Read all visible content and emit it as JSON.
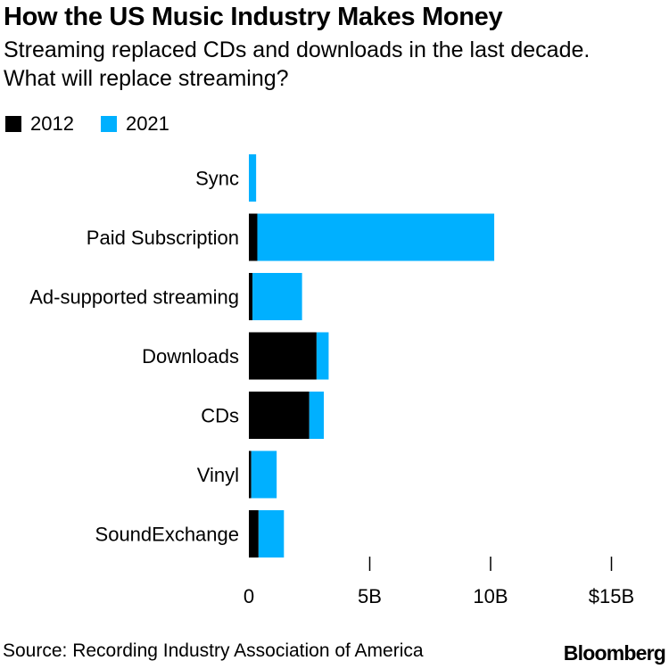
{
  "title": "How the US Music Industry Makes Money",
  "subtitle": "Streaming replaced CDs and downloads in the last decade. What will replace streaming?",
  "source": "Source: Recording Industry Association of America",
  "brand": "Bloomberg",
  "colors": {
    "s2012": "#000000",
    "s2021": "#00b0ff"
  },
  "chart_data": {
    "type": "bar",
    "orientation": "horizontal",
    "stacked": true,
    "categories": [
      "Sync",
      "Paid Subscription",
      "Ad-supported streaming",
      "Downloads",
      "CDs",
      "Vinyl",
      "SoundExchange"
    ],
    "series": [
      {
        "name": "2012",
        "values": [
          0.0,
          0.35,
          0.15,
          2.8,
          2.5,
          0.1,
          0.4
        ]
      },
      {
        "name": "2021",
        "values": [
          0.3,
          9.8,
          2.05,
          0.5,
          0.6,
          1.05,
          1.05
        ]
      }
    ],
    "xlim": [
      0,
      15
    ],
    "xticks": [
      {
        "value": 0,
        "label": "0"
      },
      {
        "value": 5,
        "label": "5B"
      },
      {
        "value": 10,
        "label": "10B"
      },
      {
        "value": 15,
        "label": "$15B"
      }
    ],
    "legend": "top-left",
    "grid": false
  }
}
